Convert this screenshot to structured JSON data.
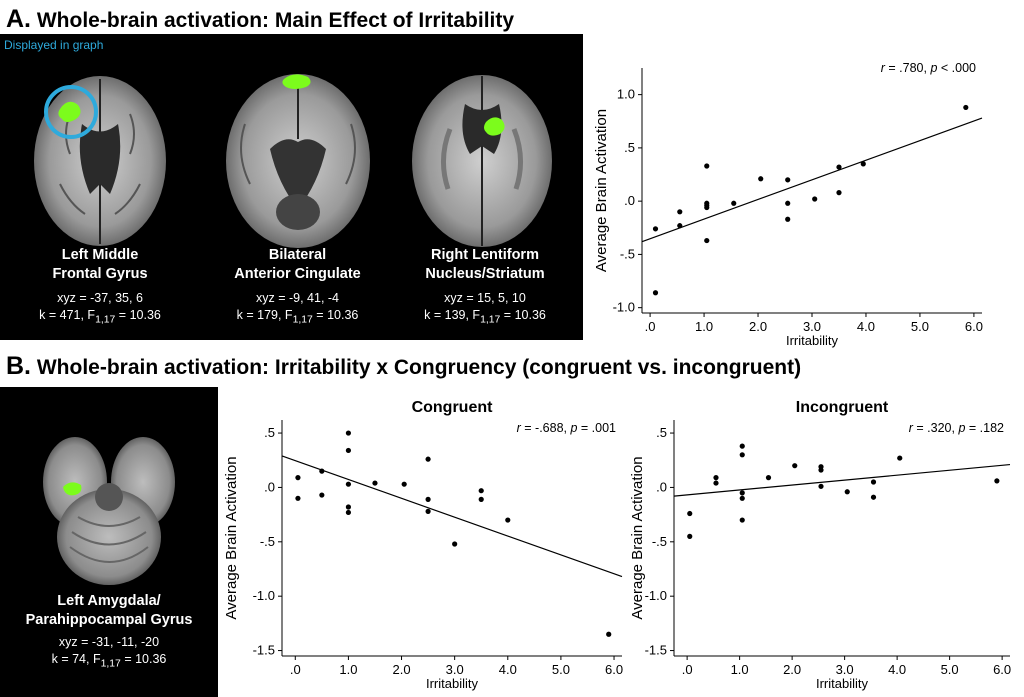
{
  "section_a": {
    "letter": "A.",
    "title": "Whole-brain activation: Main Effect of Irritability"
  },
  "section_b": {
    "letter": "B.",
    "title": "Whole-brain activation: Irritability x Congruency (congruent vs. incongruent)"
  },
  "displayed_label": "Displayed in graph",
  "brains_a": [
    {
      "name1": "Left Middle",
      "name2": "Frontal Gyrus",
      "xyz": "xyz = -37, 35, 6",
      "k": "k = 471, F",
      "sub": "1,17",
      "fval": " = 10.36"
    },
    {
      "name1": "Bilateral",
      "name2": "Anterior Cingulate",
      "xyz": "xyz = -9, 41, -4",
      "k": "k = 179, F",
      "sub": "1,17",
      "fval": " = 10.36"
    },
    {
      "name1": "Right Lentiform",
      "name2": "Nucleus/Striatum",
      "xyz": "xyz = 15, 5, 10",
      "k": "k = 139, F",
      "sub": "1,17",
      "fval": " = 10.36"
    }
  ],
  "brain_b": {
    "name1": "Left Amygdala/",
    "name2": "Parahippocampal Gyrus",
    "xyz": "xyz = -31, -11, -20",
    "k": "k = 74, F",
    "sub": "1,17",
    "fval": " = 10.36"
  },
  "colors": {
    "activation": "#7cfc1c",
    "circle": "#2eaadc",
    "panel": "#000000"
  },
  "chart_data": [
    {
      "type": "scatter",
      "panel": "A",
      "title": "",
      "xlabel": "Irritability",
      "ylabel": "Average Brain Activation",
      "annotation": {
        "r": "r",
        "rval": " = .780, ",
        "p": "p",
        "pval": " < .000"
      },
      "xlim": [
        -0.15,
        6.15
      ],
      "ylim": [
        -1.05,
        1.25
      ],
      "xticks": [
        0.0,
        1.0,
        2.0,
        3.0,
        4.0,
        5.0,
        6.0
      ],
      "xtick_labels": [
        ".0",
        "1.0",
        "2.0",
        "3.0",
        "4.0",
        "5.0",
        "6.0"
      ],
      "yticks": [
        1.0,
        0.5,
        0.0,
        -0.5,
        -1.0
      ],
      "ytick_labels": [
        "1.0",
        ".5",
        ".0",
        "-.5",
        "-1.0"
      ],
      "points": [
        [
          0.1,
          -0.26
        ],
        [
          0.1,
          -0.86
        ],
        [
          0.55,
          -0.1
        ],
        [
          0.55,
          -0.23
        ],
        [
          1.05,
          0.33
        ],
        [
          1.05,
          -0.04
        ],
        [
          1.05,
          -0.02
        ],
        [
          1.05,
          -0.06
        ],
        [
          1.05,
          -0.37
        ],
        [
          1.55,
          -0.02
        ],
        [
          2.05,
          0.21
        ],
        [
          2.55,
          0.2
        ],
        [
          2.55,
          -0.02
        ],
        [
          2.55,
          -0.17
        ],
        [
          3.05,
          0.02
        ],
        [
          3.5,
          0.32
        ],
        [
          3.5,
          0.08
        ],
        [
          3.95,
          0.35
        ],
        [
          5.85,
          0.88
        ]
      ],
      "fit_line": [
        [
          -0.15,
          -0.38
        ],
        [
          6.15,
          0.78
        ]
      ]
    },
    {
      "type": "scatter",
      "panel": "B",
      "title": "Congruent",
      "xlabel": "Irritability",
      "ylabel": "Average Brain Activation",
      "annotation": {
        "r": "r",
        "rval": " = -.688, ",
        "p": "p",
        "pval": " = .001"
      },
      "xlim": [
        -0.25,
        6.15
      ],
      "ylim": [
        -1.55,
        0.62
      ],
      "xticks": [
        0.0,
        1.0,
        2.0,
        3.0,
        4.0,
        5.0,
        6.0
      ],
      "xtick_labels": [
        ".0",
        "1.0",
        "2.0",
        "3.0",
        "4.0",
        "5.0",
        "6.0"
      ],
      "yticks": [
        0.5,
        0.0,
        -0.5,
        -1.0,
        -1.5
      ],
      "ytick_labels": [
        ".5",
        ".0",
        "-.5",
        "-1.0",
        "-1.5"
      ],
      "points": [
        [
          0.05,
          0.09
        ],
        [
          0.05,
          -0.1
        ],
        [
          0.5,
          0.15
        ],
        [
          0.5,
          -0.07
        ],
        [
          1.0,
          0.5
        ],
        [
          1.0,
          0.34
        ],
        [
          1.0,
          0.03
        ],
        [
          1.0,
          -0.18
        ],
        [
          1.0,
          -0.23
        ],
        [
          1.5,
          0.04
        ],
        [
          2.05,
          0.03
        ],
        [
          2.5,
          0.26
        ],
        [
          2.5,
          -0.11
        ],
        [
          2.5,
          -0.22
        ],
        [
          3.0,
          -0.52
        ],
        [
          3.5,
          -0.03
        ],
        [
          3.5,
          -0.11
        ],
        [
          4.0,
          -0.3
        ],
        [
          5.9,
          -1.35
        ]
      ],
      "fit_line": [
        [
          -0.25,
          0.29
        ],
        [
          6.15,
          -0.82
        ]
      ]
    },
    {
      "type": "scatter",
      "panel": "B",
      "title": "Incongruent",
      "xlabel": "Irritability",
      "ylabel": "Average Brain Activation",
      "annotation": {
        "r": "r",
        "rval": " = .320, ",
        "p": "p",
        "pval": " = .182"
      },
      "xlim": [
        -0.25,
        6.15
      ],
      "ylim": [
        -1.55,
        0.62
      ],
      "xticks": [
        0.0,
        1.0,
        2.0,
        3.0,
        4.0,
        5.0,
        6.0
      ],
      "xtick_labels": [
        ".0",
        "1.0",
        "2.0",
        "3.0",
        "4.0",
        "5.0",
        "6.0"
      ],
      "yticks": [
        0.5,
        0.0,
        -0.5,
        -1.0,
        -1.5
      ],
      "ytick_labels": [
        ".5",
        ".0",
        "-.5",
        "-1.0",
        "-1.5"
      ],
      "points": [
        [
          0.05,
          -0.24
        ],
        [
          0.05,
          -0.45
        ],
        [
          0.55,
          0.09
        ],
        [
          0.55,
          0.04
        ],
        [
          1.05,
          0.38
        ],
        [
          1.05,
          0.3
        ],
        [
          1.05,
          -0.05
        ],
        [
          1.05,
          -0.1
        ],
        [
          1.05,
          -0.3
        ],
        [
          1.55,
          0.09
        ],
        [
          2.05,
          0.2
        ],
        [
          2.55,
          0.19
        ],
        [
          2.55,
          0.16
        ],
        [
          2.55,
          0.01
        ],
        [
          3.05,
          -0.04
        ],
        [
          3.55,
          0.05
        ],
        [
          3.55,
          -0.09
        ],
        [
          4.05,
          0.27
        ],
        [
          5.9,
          0.06
        ]
      ],
      "fit_line": [
        [
          -0.25,
          -0.08
        ],
        [
          6.15,
          0.21
        ]
      ]
    }
  ]
}
